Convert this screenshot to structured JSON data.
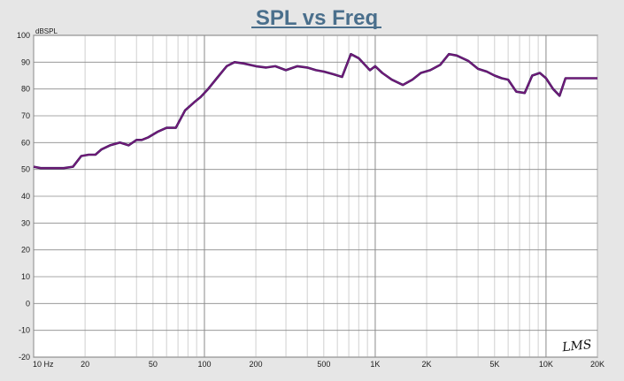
{
  "chart_data": {
    "type": "line",
    "title": "SPL vs Freq",
    "ylabel": "dBSPL",
    "xlabel": "",
    "x_scale": "log",
    "xlim": [
      10,
      20000
    ],
    "ylim": [
      -20,
      100
    ],
    "grid": true,
    "x_tick_labels": [
      {
        "value": 10,
        "label": "10  Hz"
      },
      {
        "value": 20,
        "label": "20"
      },
      {
        "value": 50,
        "label": "50"
      },
      {
        "value": 100,
        "label": "100"
      },
      {
        "value": 200,
        "label": "200"
      },
      {
        "value": 500,
        "label": "500"
      },
      {
        "value": 1000,
        "label": "1K"
      },
      {
        "value": 2000,
        "label": "2K"
      },
      {
        "value": 5000,
        "label": "5K"
      },
      {
        "value": 10000,
        "label": "10K"
      },
      {
        "value": 20000,
        "label": "20K"
      }
    ],
    "y_tick_labels": [
      "100",
      "90",
      "80",
      "70",
      "60",
      "50",
      "40",
      "30",
      "20",
      "10",
      "0",
      "-10",
      "-20"
    ],
    "series": [
      {
        "color": "#7a1a7a",
        "x": [
          10,
          11,
          13,
          15,
          17,
          19,
          21,
          23,
          25,
          28,
          32,
          36,
          40,
          43,
          47,
          53,
          60,
          68,
          77,
          87,
          95,
          105,
          120,
          135,
          150,
          170,
          200,
          230,
          260,
          300,
          350,
          400,
          450,
          500,
          570,
          640,
          720,
          800,
          870,
          930,
          1000,
          1100,
          1250,
          1450,
          1650,
          1850,
          2100,
          2400,
          2700,
          3000,
          3500,
          4000,
          4500,
          5000,
          5500,
          6000,
          6700,
          7500,
          8300,
          9200,
          10000,
          11000,
          12000,
          13000,
          14000,
          15500,
          16500,
          18000,
          20000
        ],
        "y": [
          51,
          50.5,
          50.5,
          50.5,
          51,
          55,
          55.5,
          55.5,
          57.5,
          59,
          60,
          59,
          61,
          61,
          62,
          64,
          65.5,
          65.5,
          72,
          75,
          77,
          80,
          84.5,
          88.5,
          90,
          89.5,
          88.5,
          88,
          88.5,
          87,
          88.5,
          88,
          87,
          86.5,
          85.5,
          84.5,
          93,
          91.5,
          89,
          87,
          88.5,
          86,
          83.5,
          81.5,
          83.5,
          86,
          87,
          89,
          93,
          92.5,
          90.5,
          87.5,
          86.5,
          85,
          84,
          83.5,
          79,
          78.5,
          85,
          86,
          84,
          80,
          77.5,
          84,
          84,
          84,
          84,
          84,
          84
        ]
      }
    ]
  },
  "logo_text": "LMS"
}
